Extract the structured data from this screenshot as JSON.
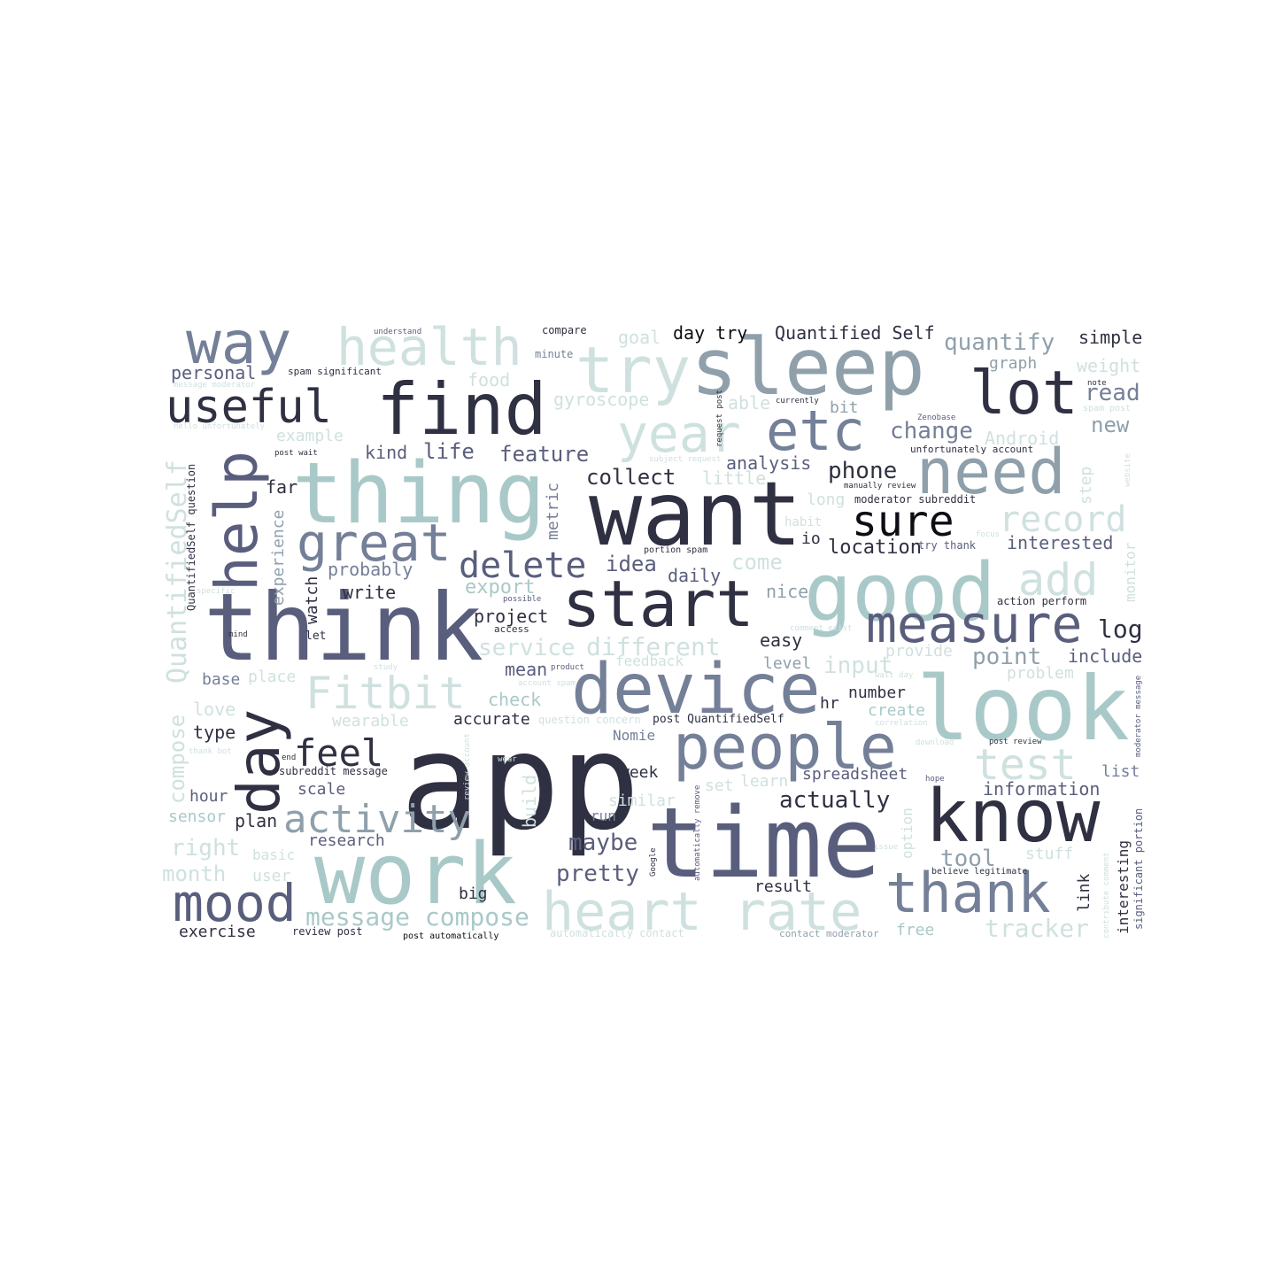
{
  "palette": {
    "c1": "#2f3042",
    "c2": "#5a5e7d",
    "c3": "#747f98",
    "c4": "#8fa0ab",
    "c5": "#a9c9c8",
    "c6": "#cfe1df",
    "c7": "#0d0d14"
  },
  "words": [
    {
      "text": "app",
      "color": "c1"
    },
    {
      "text": "time",
      "color": "c2"
    },
    {
      "text": "think",
      "color": "c2"
    },
    {
      "text": "want",
      "color": "c1"
    },
    {
      "text": "look",
      "color": "c5"
    },
    {
      "text": "work",
      "color": "c5"
    },
    {
      "text": "thing",
      "color": "c5"
    },
    {
      "text": "sleep",
      "color": "c4"
    },
    {
      "text": "good",
      "color": "c5"
    },
    {
      "text": "know",
      "color": "c1"
    },
    {
      "text": "device",
      "color": "c3"
    },
    {
      "text": "people",
      "color": "c3"
    },
    {
      "text": "start",
      "color": "c1"
    },
    {
      "text": "find",
      "color": "c1"
    },
    {
      "text": "heart rate",
      "color": "c6"
    },
    {
      "text": "need",
      "color": "c4"
    },
    {
      "text": "thank",
      "color": "c3"
    },
    {
      "text": "lot",
      "color": "c1"
    },
    {
      "text": "try",
      "color": "c6"
    },
    {
      "text": "way",
      "color": "c3"
    },
    {
      "text": "help",
      "color": "c2"
    },
    {
      "text": "day",
      "color": "c1"
    },
    {
      "text": "useful",
      "color": "c1"
    },
    {
      "text": "health",
      "color": "c6"
    },
    {
      "text": "great",
      "color": "c3"
    },
    {
      "text": "etc",
      "color": "c3"
    },
    {
      "text": "year",
      "color": "c6"
    },
    {
      "text": "measure",
      "color": "c2"
    },
    {
      "text": "mood",
      "color": "c2"
    },
    {
      "text": "Fitbit",
      "color": "c6"
    },
    {
      "text": "test",
      "color": "c6"
    },
    {
      "text": "sure",
      "color": "c7"
    },
    {
      "text": "record",
      "color": "c6"
    },
    {
      "text": "add",
      "color": "c6"
    },
    {
      "text": "activity",
      "color": "c4"
    },
    {
      "text": "feel",
      "color": "c1"
    },
    {
      "text": "delete",
      "color": "c2"
    },
    {
      "text": "QuantifiedSelf",
      "color": "c6"
    },
    {
      "text": "compose",
      "color": "c6"
    },
    {
      "text": "message compose",
      "color": "c5"
    },
    {
      "text": "tracker",
      "color": "c6"
    },
    {
      "text": "different",
      "color": "c6"
    },
    {
      "text": "service",
      "color": "c6"
    },
    {
      "text": "point",
      "color": "c4"
    },
    {
      "text": "actually",
      "color": "c1"
    },
    {
      "text": "change",
      "color": "c3"
    },
    {
      "text": "quantify",
      "color": "c4"
    },
    {
      "text": "tool",
      "color": "c4"
    },
    {
      "text": "phone",
      "color": "c1"
    },
    {
      "text": "collect",
      "color": "c1"
    },
    {
      "text": "feature",
      "color": "c2"
    },
    {
      "text": "life",
      "color": "c2"
    },
    {
      "text": "pretty",
      "color": "c2"
    },
    {
      "text": "maybe",
      "color": "c2"
    },
    {
      "text": "log",
      "color": "c1"
    },
    {
      "text": "location",
      "color": "c1"
    },
    {
      "text": "idea",
      "color": "c2"
    },
    {
      "text": "export",
      "color": "c5"
    },
    {
      "text": "come",
      "color": "c6"
    },
    {
      "text": "information",
      "color": "c2"
    },
    {
      "text": "interested",
      "color": "c2"
    },
    {
      "text": "Quantified Self",
      "color": "c1"
    },
    {
      "text": "day try",
      "color": "c7"
    },
    {
      "text": "simple",
      "color": "c1"
    },
    {
      "text": "read",
      "color": "c3"
    },
    {
      "text": "new",
      "color": "c4"
    },
    {
      "text": "right",
      "color": "c6"
    },
    {
      "text": "month",
      "color": "c6"
    },
    {
      "text": "gyroscope",
      "color": "c6"
    },
    {
      "text": "year_dup",
      "color": "c6"
    },
    {
      "text": "project",
      "color": "c1"
    },
    {
      "text": "probably",
      "color": "c3"
    },
    {
      "text": "daily",
      "color": "c2"
    },
    {
      "text": "analysis",
      "color": "c2"
    },
    {
      "text": "little",
      "color": "c6"
    },
    {
      "text": "kind",
      "color": "c2"
    },
    {
      "text": "example",
      "color": "c6"
    },
    {
      "text": "personal",
      "color": "c2"
    },
    {
      "text": "food",
      "color": "c6"
    },
    {
      "text": "goal",
      "color": "c6"
    },
    {
      "text": "graph",
      "color": "c4"
    },
    {
      "text": "weight",
      "color": "c6"
    },
    {
      "text": "Android",
      "color": "c6"
    },
    {
      "text": "able",
      "color": "c6"
    },
    {
      "text": "bit",
      "color": "c4"
    },
    {
      "text": "far",
      "color": "c1"
    },
    {
      "text": "metric",
      "color": "c3"
    },
    {
      "text": "experience",
      "color": "c4"
    },
    {
      "text": "watch",
      "color": "c1"
    },
    {
      "text": "write",
      "color": "c1"
    },
    {
      "text": "nice",
      "color": "c4"
    },
    {
      "text": "easy",
      "color": "c1"
    },
    {
      "text": "level",
      "color": "c4"
    },
    {
      "text": "include",
      "color": "c2"
    },
    {
      "text": "problem",
      "color": "c6"
    },
    {
      "text": "number",
      "color": "c1"
    },
    {
      "text": "create",
      "color": "c5"
    },
    {
      "text": "hr",
      "color": "c1"
    },
    {
      "text": "check",
      "color": "c5"
    },
    {
      "text": "accurate",
      "color": "c1"
    },
    {
      "text": "wearable",
      "color": "c6"
    },
    {
      "text": "mean",
      "color": "c2"
    },
    {
      "text": "base",
      "color": "c3"
    },
    {
      "text": "place",
      "color": "c6"
    },
    {
      "text": "love",
      "color": "c6"
    },
    {
      "text": "type",
      "color": "c1"
    },
    {
      "text": "hour",
      "color": "c2"
    },
    {
      "text": "sensor",
      "color": "c5"
    },
    {
      "text": "plan",
      "color": "c1"
    },
    {
      "text": "research",
      "color": "c2"
    },
    {
      "text": "scale",
      "color": "c2"
    },
    {
      "text": "user",
      "color": "c6"
    },
    {
      "text": "exercise",
      "color": "c1"
    },
    {
      "text": "review post",
      "color": "c1"
    },
    {
      "text": "post automatically",
      "color": "c7"
    },
    {
      "text": "big",
      "color": "c1"
    },
    {
      "text": "run",
      "color": "c3"
    },
    {
      "text": "similar",
      "color": "c6"
    },
    {
      "text": "week",
      "color": "c1"
    },
    {
      "text": "Nomie",
      "color": "c3"
    },
    {
      "text": "spreadsheet",
      "color": "c2"
    },
    {
      "text": "result",
      "color": "c1"
    },
    {
      "text": "stuff",
      "color": "c6"
    },
    {
      "text": "list",
      "color": "c3"
    },
    {
      "text": "link",
      "color": "c1"
    },
    {
      "text": "interesting",
      "color": "c1"
    },
    {
      "text": "significant portion",
      "color": "c2"
    },
    {
      "text": "free",
      "color": "c5"
    },
    {
      "text": "automatically contact",
      "color": "c6"
    },
    {
      "text": "contact moderator",
      "color": "c4"
    },
    {
      "text": "set",
      "color": "c6"
    },
    {
      "text": "learn",
      "color": "c6"
    },
    {
      "text": "provide",
      "color": "c6"
    },
    {
      "text": "step",
      "color": "c6"
    },
    {
      "text": "monitor",
      "color": "c6"
    },
    {
      "text": "action perform",
      "color": "c1"
    },
    {
      "text": "io",
      "color": "c1"
    },
    {
      "text": "moderator subreddit",
      "color": "c1"
    },
    {
      "text": "unfortunately account",
      "color": "c1"
    },
    {
      "text": "spam post",
      "color": "c6"
    },
    {
      "text": "note",
      "color": "c1"
    },
    {
      "text": "Zenobase",
      "color": "c2"
    },
    {
      "text": "compare",
      "color": "c1"
    },
    {
      "text": "minute",
      "color": "c3"
    },
    {
      "text": "understand",
      "color": "c2"
    },
    {
      "text": "spam significant",
      "color": "c1"
    },
    {
      "text": "message moderator",
      "color": "c6"
    },
    {
      "text": "hello unfortunately",
      "color": "c6"
    },
    {
      "text": "post wait",
      "color": "c1"
    },
    {
      "text": "QuantifiedSelf question",
      "color": "c1"
    },
    {
      "text": "request post",
      "color": "c1"
    },
    {
      "text": "subject request",
      "color": "c6"
    },
    {
      "text": "currently",
      "color": "c1"
    },
    {
      "text": "manually review",
      "color": "c1"
    },
    {
      "text": "portion spam",
      "color": "c1"
    },
    {
      "text": "try thank",
      "color": "c2"
    },
    {
      "text": "access",
      "color": "c1"
    },
    {
      "text": "possible",
      "color": "c2"
    },
    {
      "text": "product",
      "color": "c2"
    },
    {
      "text": "feedback",
      "color": "c6"
    },
    {
      "text": "post QuantifiedSelf",
      "color": "c1"
    },
    {
      "text": "subreddit message",
      "color": "c1"
    },
    {
      "text": "end",
      "color": "c1"
    },
    {
      "text": "mind",
      "color": "c1"
    },
    {
      "text": "let",
      "color": "c1"
    },
    {
      "text": "specific",
      "color": "c6"
    },
    {
      "text": "thank bot",
      "color": "c6"
    },
    {
      "text": "study",
      "color": "c6"
    },
    {
      "text": "account spam",
      "color": "c6"
    },
    {
      "text": "wear",
      "color": "c6"
    },
    {
      "text": "Google",
      "color": "c1"
    },
    {
      "text": "automatically remove",
      "color": "c2"
    },
    {
      "text": "believe legitimate",
      "color": "c1"
    },
    {
      "text": "option",
      "color": "c6"
    },
    {
      "text": "issue",
      "color": "c6"
    },
    {
      "text": "hope",
      "color": "c2"
    },
    {
      "text": "post review",
      "color": "c1"
    },
    {
      "text": "moderator message",
      "color": "c2"
    },
    {
      "text": "comment exist",
      "color": "c6"
    },
    {
      "text": "website",
      "color": "c6"
    },
    {
      "text": "focus",
      "color": "c6"
    },
    {
      "text": "long",
      "color": "c6"
    },
    {
      "text": "habit",
      "color": "c6"
    },
    {
      "text": "download",
      "color": "c6"
    },
    {
      "text": "correlation",
      "color": "c6"
    },
    {
      "text": "wait day",
      "color": "c6"
    },
    {
      "text": "contribute comment",
      "color": "c6"
    },
    {
      "text": "review account",
      "color": "c6"
    },
    {
      "text": "question concern",
      "color": "c6"
    },
    {
      "text": "build",
      "color": "c6"
    },
    {
      "text": "basic",
      "color": "c6"
    },
    {
      "text": "input",
      "color": "c6"
    }
  ]
}
